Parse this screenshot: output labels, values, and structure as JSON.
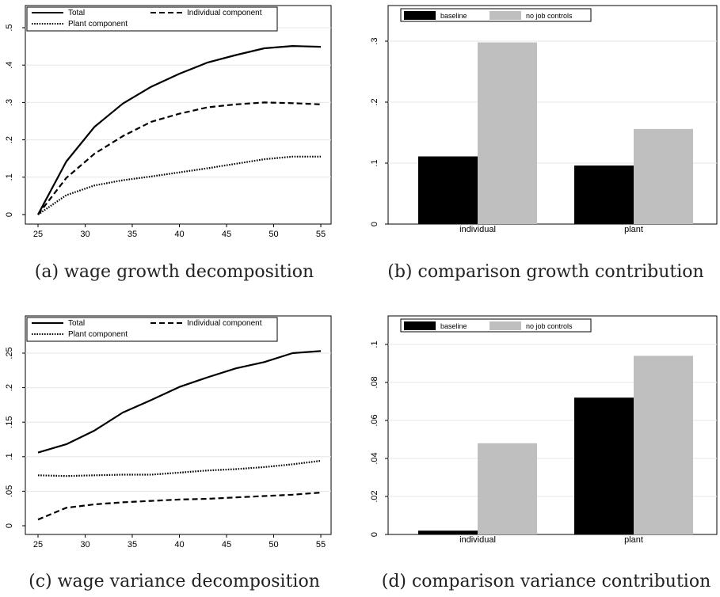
{
  "chart_data": [
    {
      "type": "line",
      "x": [
        25,
        28,
        31,
        34,
        37,
        40,
        43,
        46,
        49,
        52,
        55
      ],
      "series": [
        {
          "name": "Total",
          "style": "solid",
          "values": [
            0.0,
            0.142,
            0.235,
            0.297,
            0.342,
            0.377,
            0.407,
            0.427,
            0.445,
            0.451,
            0.449
          ]
        },
        {
          "name": "Individual component",
          "style": "dashed",
          "values": [
            0.0,
            0.098,
            0.163,
            0.21,
            0.248,
            0.27,
            0.287,
            0.295,
            0.3,
            0.298,
            0.295
          ]
        },
        {
          "name": "Plant component",
          "style": "dotted",
          "values": [
            0.0,
            0.052,
            0.078,
            0.092,
            0.102,
            0.113,
            0.124,
            0.136,
            0.148,
            0.155,
            0.155
          ]
        }
      ],
      "xticks": [
        "25",
        "30",
        "35",
        "40",
        "45",
        "50",
        "55"
      ],
      "yticks": [
        "0",
        ".1",
        ".2",
        ".3",
        ".4",
        ".5"
      ],
      "xlim": [
        25,
        55
      ],
      "ylim": [
        0,
        0.5
      ],
      "legend_placement": "top"
    },
    {
      "type": "bar",
      "categories": [
        "individual",
        "plant"
      ],
      "series": [
        {
          "name": "baseline",
          "color": "#000000",
          "values": [
            0.111,
            0.096
          ]
        },
        {
          "name": "no job controls",
          "color": "#bfbfbf",
          "values": [
            0.298,
            0.156
          ]
        }
      ],
      "yticks": [
        ".3",
        ".2",
        ".1",
        "0"
      ],
      "ylim": [
        0,
        0.3
      ],
      "legend_placement": "top-left"
    },
    {
      "type": "line",
      "x": [
        25,
        28,
        31,
        34,
        37,
        40,
        43,
        46,
        49,
        52,
        55
      ],
      "series": [
        {
          "name": "Total",
          "style": "solid",
          "values": [
            0.106,
            0.118,
            0.138,
            0.164,
            0.182,
            0.201,
            0.215,
            0.228,
            0.237,
            0.25,
            0.253
          ]
        },
        {
          "name": "Individual component",
          "style": "dashed",
          "values": [
            0.009,
            0.026,
            0.031,
            0.034,
            0.036,
            0.038,
            0.039,
            0.041,
            0.043,
            0.045,
            0.048
          ]
        },
        {
          "name": "Plant component",
          "style": "dotted",
          "values": [
            0.073,
            0.072,
            0.073,
            0.074,
            0.074,
            0.077,
            0.08,
            0.082,
            0.085,
            0.089,
            0.094
          ]
        }
      ],
      "xticks": [
        "25",
        "30",
        "35",
        "40",
        "45",
        "50",
        "55"
      ],
      "yticks": [
        "0",
        ".05",
        ".1",
        ".15",
        ".2",
        ".25"
      ],
      "xlim": [
        25,
        55
      ],
      "ylim": [
        0,
        0.25
      ],
      "legend_placement": "top"
    },
    {
      "type": "bar",
      "categories": [
        "individual",
        "plant"
      ],
      "series": [
        {
          "name": "baseline",
          "color": "#000000",
          "values": [
            0.002,
            0.072
          ]
        },
        {
          "name": "no job controls",
          "color": "#bfbfbf",
          "values": [
            0.048,
            0.094
          ]
        }
      ],
      "yticks": [
        ".1",
        ".08",
        ".06",
        ".04",
        ".02",
        "0"
      ],
      "ylim": [
        0,
        0.1
      ],
      "legend_placement": "top-left"
    }
  ],
  "captions": {
    "a": "(a) wage growth decomposition",
    "b": "(b) comparison growth contribution",
    "c": "(c) wage variance decomposition",
    "d": "(d) comparison variance contribution"
  }
}
